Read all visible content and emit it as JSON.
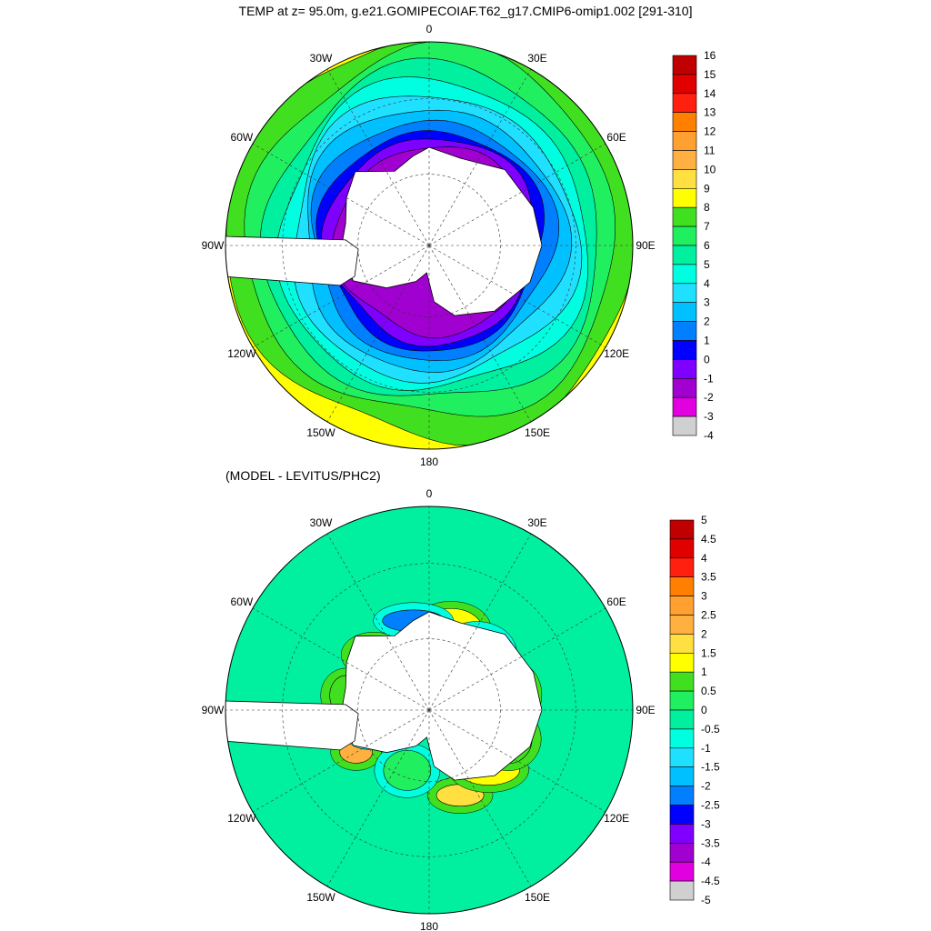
{
  "title": "TEMP at z=  95.0m, g.e21.GOMIPECOIAF.T62_g17.CMIP6-omip1.002 [291-310]",
  "subtitle": "(MODEL - LEVITUS/PHC2)",
  "chart_data": [
    {
      "type": "heatmap",
      "projection": "south-polar-stereographic",
      "variable": "TEMP",
      "depth": "95.0m",
      "lon_labels": [
        "0",
        "30E",
        "60E",
        "90E",
        "120E",
        "150E",
        "180",
        "150W",
        "120W",
        "90W",
        "60W",
        "30W"
      ],
      "colorbar": {
        "labels": [
          "16",
          "15",
          "14",
          "13",
          "12",
          "11",
          "10",
          "9",
          "8",
          "7",
          "6",
          "5",
          "4",
          "3",
          "2",
          "1",
          "0",
          "-1",
          "-2",
          "-3",
          "-4"
        ],
        "colors": [
          "#c00000",
          "#e00000",
          "#ff2010",
          "#ff8000",
          "#ffa030",
          "#ffb040",
          "#ffe040",
          "#ffff00",
          "#40e020",
          "#20f060",
          "#00f0a0",
          "#00ffe0",
          "#20e0ff",
          "#00c0ff",
          "#0080ff",
          "#0000ff",
          "#8000ff",
          "#a000d0",
          "#e000e0",
          "#d0d0d0",
          "#707070"
        ]
      },
      "rings": [
        {
          "level": -2,
          "radius": 0.87
        },
        {
          "level": -1,
          "radius": 0.95
        },
        {
          "level": 0,
          "radius": 1.01
        },
        {
          "level": 1,
          "radius": 1.1
        },
        {
          "level": 2,
          "radius": 1.2
        },
        {
          "level": 3,
          "radius": 1.31
        },
        {
          "level": 4,
          "radius": 1.42
        },
        {
          "level": 5,
          "radius": 1.54
        },
        {
          "level": 6,
          "radius": 1.69
        },
        {
          "level": 7,
          "radius": 1.88
        }
      ]
    },
    {
      "type": "heatmap",
      "projection": "south-polar-stereographic",
      "variable": "MODEL - LEVITUS/PHC2",
      "lon_labels": [
        "0",
        "30E",
        "60E",
        "90E",
        "120E",
        "150E",
        "180",
        "150W",
        "120W",
        "90W",
        "60W",
        "30W"
      ],
      "background_level": -0.5,
      "colorbar": {
        "labels": [
          "5",
          "4.5",
          "4",
          "3.5",
          "3",
          "2.5",
          "2",
          "1.5",
          "1",
          "0.5",
          "0",
          "-0.5",
          "-1",
          "-1.5",
          "-2",
          "-2.5",
          "-3",
          "-3.5",
          "-4",
          "-4.5",
          "-5"
        ],
        "colors": [
          "#c00000",
          "#e00000",
          "#ff2010",
          "#ff8000",
          "#ffa030",
          "#ffb040",
          "#ffe040",
          "#ffff00",
          "#40e020",
          "#20f060",
          "#00f0a0",
          "#00ffe0",
          "#20e0ff",
          "#00c0ff",
          "#0080ff",
          "#0000ff",
          "#8000ff",
          "#a000d0",
          "#e000e0",
          "#d0d0d0",
          "#707070"
        ]
      },
      "blobs": [
        {
          "lon": -60,
          "lat": -45,
          "level": 2
        },
        {
          "lon": -135,
          "lat": -48,
          "level": 2.5
        },
        {
          "lon": 165,
          "lat": -45,
          "level": 1
        },
        {
          "lon": 100,
          "lat": -43,
          "level": 1.5
        },
        {
          "lon": 20,
          "lat": -42,
          "level": 1.5
        },
        {
          "lon": 45,
          "lat": -45,
          "level": 1
        },
        {
          "lon": -100,
          "lat": -45,
          "level": 0.5
        },
        {
          "lon": 70,
          "lat": -45,
          "level": 0.5
        },
        {
          "lon": -170,
          "lat": -42,
          "level": -2.5
        },
        {
          "lon": -75,
          "lat": -55,
          "level": -1.5
        },
        {
          "lon": -20,
          "lat": -55,
          "level": 0
        },
        {
          "lon": 140,
          "lat": -50,
          "level": 0
        }
      ]
    }
  ]
}
